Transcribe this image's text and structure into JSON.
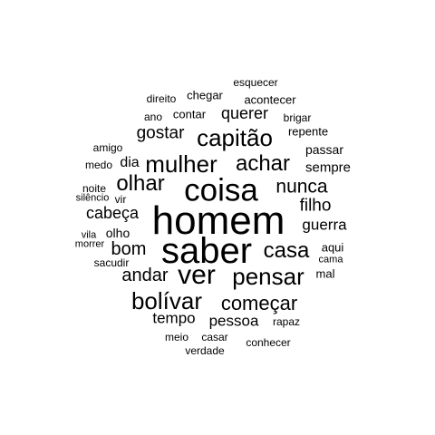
{
  "word_cloud": {
    "text_color": "#000000",
    "background_color": "#ffffff",
    "words": [
      {
        "text": "homem",
        "weight": 44
      },
      {
        "text": "saber",
        "weight": 40
      },
      {
        "text": "coisa",
        "weight": 35
      },
      {
        "text": "ver",
        "weight": 30
      },
      {
        "text": "mulher",
        "weight": 26
      },
      {
        "text": "capitão",
        "weight": 26
      },
      {
        "text": "pensar",
        "weight": 26
      },
      {
        "text": "bolívar",
        "weight": 26
      },
      {
        "text": "achar",
        "weight": 24
      },
      {
        "text": "olhar",
        "weight": 24
      },
      {
        "text": "casa",
        "weight": 24
      },
      {
        "text": "começar",
        "weight": 22
      },
      {
        "text": "nunca",
        "weight": 21
      },
      {
        "text": "andar",
        "weight": 20
      },
      {
        "text": "bom",
        "weight": 20
      },
      {
        "text": "gostar",
        "weight": 19
      },
      {
        "text": "filho",
        "weight": 19
      },
      {
        "text": "cabeça",
        "weight": 18
      },
      {
        "text": "querer",
        "weight": 18
      },
      {
        "text": "pessoa",
        "weight": 17
      },
      {
        "text": "tempo",
        "weight": 17
      },
      {
        "text": "guerra",
        "weight": 17
      },
      {
        "text": "dia",
        "weight": 16
      },
      {
        "text": "sempre",
        "weight": 15
      },
      {
        "text": "passar",
        "weight": 14
      },
      {
        "text": "olho",
        "weight": 14
      },
      {
        "text": "repente",
        "weight": 13
      },
      {
        "text": "acontecer",
        "weight": 13
      },
      {
        "text": "chegar",
        "weight": 13
      },
      {
        "text": "contar",
        "weight": 13
      },
      {
        "text": "mal",
        "weight": 13
      },
      {
        "text": "aqui",
        "weight": 13
      },
      {
        "text": "esquecer",
        "weight": 12
      },
      {
        "text": "direito",
        "weight": 12
      },
      {
        "text": "ano",
        "weight": 12
      },
      {
        "text": "brigar",
        "weight": 12
      },
      {
        "text": "amigo",
        "weight": 12
      },
      {
        "text": "medo",
        "weight": 12
      },
      {
        "text": "noite",
        "weight": 12
      },
      {
        "text": "vir",
        "weight": 12
      },
      {
        "text": "silêncio",
        "weight": 11
      },
      {
        "text": "vila",
        "weight": 11
      },
      {
        "text": "morrer",
        "weight": 11
      },
      {
        "text": "sacudir",
        "weight": 12
      },
      {
        "text": "rapaz",
        "weight": 12
      },
      {
        "text": "cama",
        "weight": 11
      },
      {
        "text": "meio",
        "weight": 12
      },
      {
        "text": "casar",
        "weight": 12
      },
      {
        "text": "verdade",
        "weight": 12
      },
      {
        "text": "conhecer",
        "weight": 12
      }
    ]
  }
}
